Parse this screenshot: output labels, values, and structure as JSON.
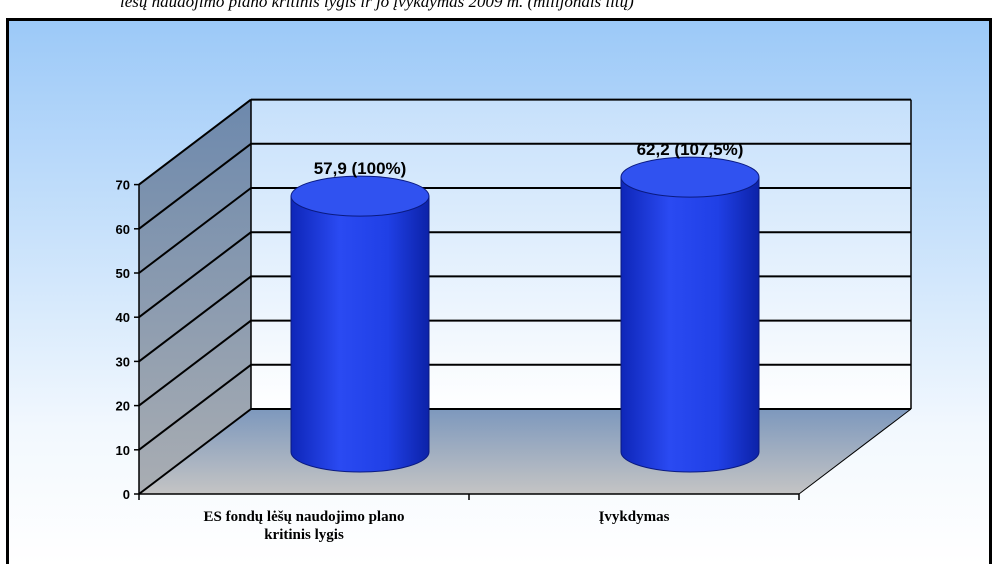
{
  "header": {
    "clipped_text": "lėšų naudojimo plano kritinis lygis ir jo įvykdymas 2009 m. (milijonais litų)"
  },
  "chart_data": {
    "type": "bar",
    "style": "3d-cylinder",
    "categories": [
      [
        "ES fondų lėšų naudojimo plano",
        "kritinis lygis"
      ],
      [
        "Įvykdymas"
      ]
    ],
    "values": [
      57.9,
      62.2
    ],
    "data_labels": [
      "57,9 (100%)",
      "62,2 (107,5%)"
    ],
    "y_ticks": [
      "0",
      "10",
      "20",
      "30",
      "40",
      "50",
      "60",
      "70"
    ],
    "ylim": [
      0,
      70
    ],
    "grid": true,
    "legend": "none",
    "colors": {
      "bar_body": "#1f3fe0",
      "bar_top": "#3052f0",
      "back_wall": "#ffffff",
      "side_wall": "#7d8ea5",
      "floor": "#8aa1bf",
      "grid": "#000000"
    }
  }
}
